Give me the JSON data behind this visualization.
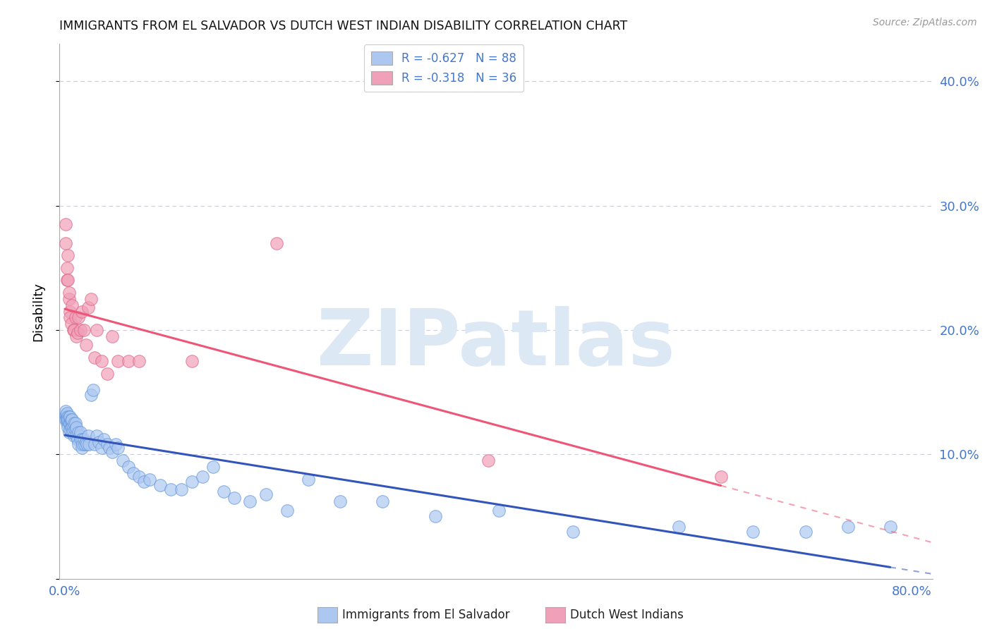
{
  "title": "IMMIGRANTS FROM EL SALVADOR VS DUTCH WEST INDIAN DISABILITY CORRELATION CHART",
  "source": "Source: ZipAtlas.com",
  "ylabel": "Disability",
  "x_ticks": [
    0.0,
    0.1,
    0.2,
    0.3,
    0.4,
    0.5,
    0.6,
    0.7,
    0.8
  ],
  "x_tick_labels": [
    "0.0%",
    "",
    "",
    "",
    "",
    "",
    "",
    "",
    "80.0%"
  ],
  "y_ticks": [
    0.0,
    0.1,
    0.2,
    0.3,
    0.4
  ],
  "y_tick_labels": [
    "",
    "10.0%",
    "20.0%",
    "30.0%",
    "40.0%"
  ],
  "xlim": [
    -0.005,
    0.82
  ],
  "ylim": [
    0.0,
    0.43
  ],
  "legend1_label": "R = -0.627   N = 88",
  "legend2_label": "R = -0.318   N = 36",
  "legend1_color": "#adc8f0",
  "legend2_color": "#f0a0b8",
  "legend1_edge": "#6699dd",
  "legend2_edge": "#dd6688",
  "trendline1_color": "#3355bb",
  "trendline2_color": "#ee5577",
  "watermark": "ZIPatlas",
  "watermark_color": "#dde8f5",
  "background_color": "#ffffff",
  "blue_x": [
    0.001,
    0.001,
    0.001,
    0.001,
    0.002,
    0.002,
    0.002,
    0.002,
    0.003,
    0.003,
    0.003,
    0.003,
    0.004,
    0.004,
    0.004,
    0.005,
    0.005,
    0.005,
    0.005,
    0.006,
    0.006,
    0.006,
    0.007,
    0.007,
    0.007,
    0.008,
    0.008,
    0.009,
    0.009,
    0.01,
    0.01,
    0.011,
    0.011,
    0.012,
    0.013,
    0.013,
    0.014,
    0.015,
    0.015,
    0.016,
    0.016,
    0.017,
    0.018,
    0.019,
    0.02,
    0.021,
    0.022,
    0.023,
    0.025,
    0.027,
    0.028,
    0.03,
    0.032,
    0.035,
    0.037,
    0.04,
    0.042,
    0.045,
    0.048,
    0.05,
    0.055,
    0.06,
    0.065,
    0.07,
    0.075,
    0.08,
    0.09,
    0.1,
    0.11,
    0.12,
    0.13,
    0.14,
    0.15,
    0.16,
    0.175,
    0.19,
    0.21,
    0.23,
    0.26,
    0.3,
    0.35,
    0.41,
    0.48,
    0.58,
    0.65,
    0.7,
    0.74,
    0.78
  ],
  "blue_y": [
    0.13,
    0.132,
    0.128,
    0.135,
    0.13,
    0.125,
    0.128,
    0.133,
    0.127,
    0.13,
    0.122,
    0.128,
    0.125,
    0.13,
    0.118,
    0.128,
    0.125,
    0.12,
    0.13,
    0.126,
    0.122,
    0.128,
    0.122,
    0.128,
    0.118,
    0.122,
    0.118,
    0.125,
    0.115,
    0.12,
    0.125,
    0.115,
    0.122,
    0.112,
    0.118,
    0.108,
    0.115,
    0.112,
    0.118,
    0.105,
    0.112,
    0.108,
    0.112,
    0.108,
    0.11,
    0.108,
    0.115,
    0.108,
    0.148,
    0.152,
    0.108,
    0.115,
    0.11,
    0.105,
    0.112,
    0.108,
    0.105,
    0.102,
    0.108,
    0.105,
    0.095,
    0.09,
    0.085,
    0.082,
    0.078,
    0.08,
    0.075,
    0.072,
    0.072,
    0.078,
    0.082,
    0.09,
    0.07,
    0.065,
    0.062,
    0.068,
    0.055,
    0.08,
    0.062,
    0.062,
    0.05,
    0.055,
    0.038,
    0.042,
    0.038,
    0.038,
    0.042,
    0.042
  ],
  "pink_x": [
    0.001,
    0.001,
    0.002,
    0.002,
    0.003,
    0.003,
    0.004,
    0.004,
    0.005,
    0.005,
    0.006,
    0.007,
    0.008,
    0.009,
    0.01,
    0.011,
    0.012,
    0.013,
    0.015,
    0.016,
    0.018,
    0.02,
    0.022,
    0.025,
    0.028,
    0.03,
    0.035,
    0.04,
    0.045,
    0.05,
    0.06,
    0.07,
    0.12,
    0.2,
    0.4,
    0.62
  ],
  "pink_y": [
    0.27,
    0.285,
    0.25,
    0.24,
    0.24,
    0.26,
    0.225,
    0.23,
    0.215,
    0.21,
    0.205,
    0.22,
    0.2,
    0.2,
    0.21,
    0.195,
    0.198,
    0.21,
    0.2,
    0.215,
    0.2,
    0.188,
    0.218,
    0.225,
    0.178,
    0.2,
    0.175,
    0.165,
    0.195,
    0.175,
    0.175,
    0.175,
    0.175,
    0.27,
    0.095,
    0.082
  ],
  "grid_color": "#ccccdd",
  "tick_color": "#4477cc",
  "legend_text_color": "#222222",
  "source_color": "#999999"
}
